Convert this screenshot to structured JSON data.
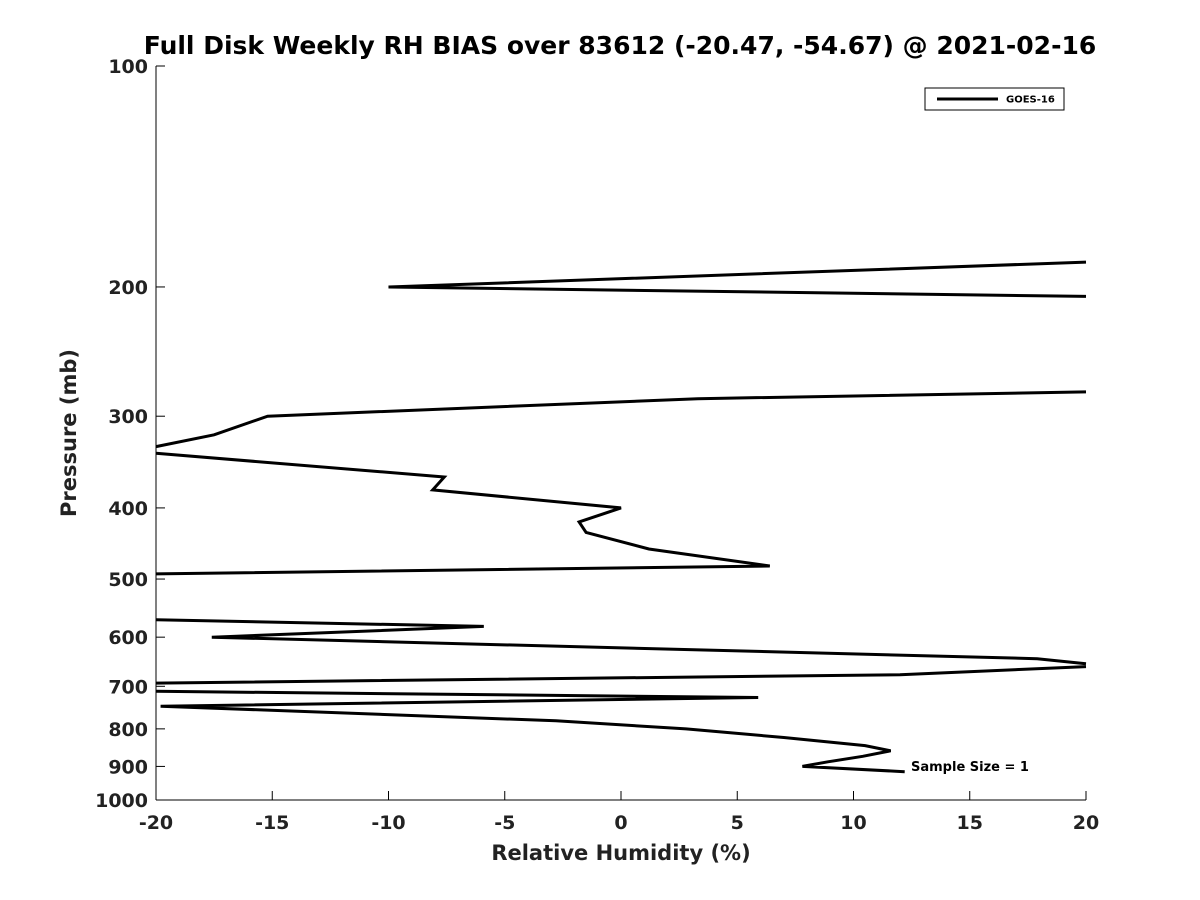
{
  "chart_data": {
    "type": "line",
    "title": "Full Disk Weekly RH BIAS over 83612 (-20.47, -54.67) @ 2021-02-16",
    "xlabel": "Relative Humidity (%)",
    "ylabel": "Pressure (mb)",
    "xlim": [
      -20,
      20
    ],
    "ylim": [
      100,
      1000
    ],
    "y_scale": "log",
    "y_reversed": true,
    "xticks": [
      -20,
      -15,
      -10,
      -5,
      0,
      5,
      10,
      15,
      20
    ],
    "yticks": [
      100,
      200,
      300,
      400,
      500,
      600,
      700,
      800,
      900,
      1000
    ],
    "grid": false,
    "legend": {
      "position": "top-right",
      "entries": [
        "GOES-16"
      ]
    },
    "annotation": "Sample Size = 1",
    "series": [
      {
        "name": "GOES-16",
        "color": "#000000",
        "segments": [
          [
            [
              20,
              185
            ],
            [
              -10,
              200
            ],
            [
              20,
              206
            ]
          ],
          [
            [
              20,
              278
            ],
            [
              3.3,
              284
            ],
            [
              -15.2,
              300
            ],
            [
              -17.5,
              318
            ],
            [
              -20,
              330
            ]
          ],
          [
            [
              -20,
              337
            ],
            [
              -7.6,
              363
            ],
            [
              -8.1,
              378
            ],
            [
              0,
              400
            ],
            [
              -1.8,
              418
            ],
            [
              -1.5,
              432
            ],
            [
              1.2,
              455
            ],
            [
              6.4,
              480
            ],
            [
              -20,
              492
            ]
          ],
          [
            [
              -20,
              568
            ],
            [
              -5.9,
              580
            ],
            [
              -17.6,
              600
            ],
            [
              17.9,
              642
            ],
            [
              20,
              652
            ]
          ],
          [
            [
              20,
              658
            ],
            [
              12,
              675
            ],
            [
              -20,
              693
            ]
          ],
          [
            [
              -20,
              711
            ],
            [
              5.9,
              725
            ],
            [
              -19.8,
              745
            ],
            [
              -2.8,
              780
            ],
            [
              2.8,
              800
            ],
            [
              7,
              822
            ],
            [
              10.5,
              843
            ],
            [
              11.6,
              857
            ],
            [
              10.4,
              872
            ],
            [
              8.9,
              887
            ],
            [
              7.8,
              900
            ],
            [
              12.2,
              915
            ]
          ]
        ]
      }
    ]
  }
}
